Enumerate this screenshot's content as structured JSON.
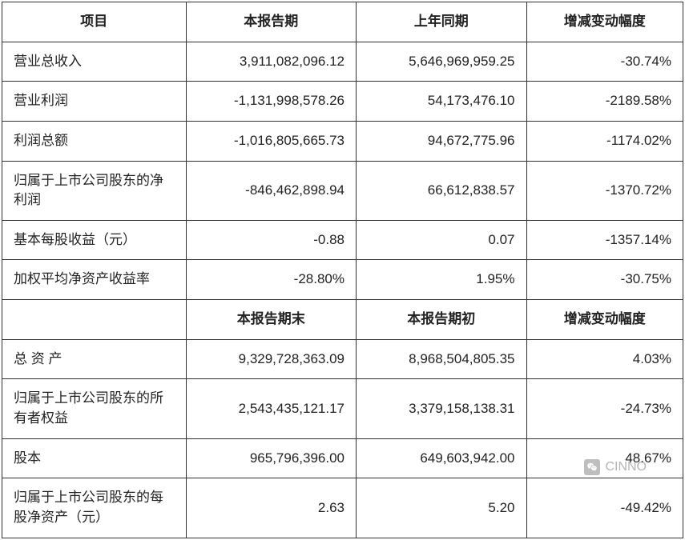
{
  "table": {
    "background_color": "#ffffff",
    "border_color": "#333333",
    "text_color": "#222222",
    "header_fontsize": 17,
    "cell_fontsize": 17,
    "header1": {
      "c0": "项目",
      "c1": "本报告期",
      "c2": "上年同期",
      "c3": "增减变动幅度"
    },
    "rows1": [
      {
        "label": "营业总收入",
        "v1": "3,911,082,096.12",
        "v2": "5,646,969,959.25",
        "v3": "-30.74%"
      },
      {
        "label": "营业利润",
        "v1": "-1,131,998,578.26",
        "v2": "54,173,476.10",
        "v3": "-2189.58%"
      },
      {
        "label": "利润总额",
        "v1": "-1,016,805,665.73",
        "v2": "94,672,775.96",
        "v3": "-1174.02%"
      },
      {
        "label": "归属于上市公司股东的净利润",
        "v1": "-846,462,898.94",
        "v2": "66,612,838.57",
        "v3": "-1370.72%"
      },
      {
        "label": "基本每股收益（元）",
        "v1": "-0.88",
        "v2": "0.07",
        "v3": "-1357.14%"
      },
      {
        "label": "加权平均净资产收益率",
        "v1": "-28.80%",
        "v2": "1.95%",
        "v3": "-30.75%"
      }
    ],
    "header2": {
      "c0": "",
      "c1": "本报告期末",
      "c2": "本报告期初",
      "c3": "增减变动幅度"
    },
    "rows2": [
      {
        "label": "总 资 产",
        "v1": "9,329,728,363.09",
        "v2": "8,968,504,805.35",
        "v3": "4.03%"
      },
      {
        "label": "归属于上市公司股东的所有者权益",
        "v1": "2,543,435,121.17",
        "v2": "3,379,158,138.31",
        "v3": "-24.73%"
      },
      {
        "label": "股本",
        "v1": "965,796,396.00",
        "v2": "649,603,942.00",
        "v3": "48.67%"
      },
      {
        "label": "归属于上市公司股东的每股净资产（元）",
        "v1": "2.63",
        "v2": "5.20",
        "v3": "-49.42%"
      }
    ]
  },
  "watermark": {
    "text": "CINNO",
    "icon_name": "wechat-icon"
  }
}
